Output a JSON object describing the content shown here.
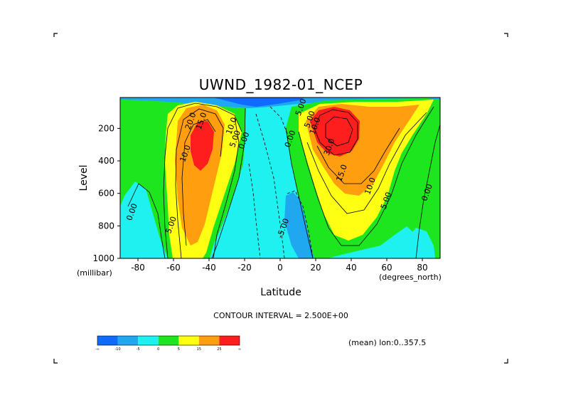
{
  "chart_data": {
    "type": "heatmap",
    "title": "UWND_1982-01_NCEP",
    "xlabel": "Latitude",
    "ylabel": "Level",
    "x_unit": "(degrees_north)",
    "y_unit": "(millibar)",
    "xlim": [
      -90,
      90
    ],
    "ylim": [
      1000,
      10
    ],
    "y_inverted": true,
    "x_ticks": [
      -80,
      -60,
      -40,
      -20,
      0,
      20,
      40,
      60,
      80
    ],
    "y_ticks": [
      200,
      400,
      600,
      800,
      1000
    ],
    "contour_interval_text": "CONTOUR INTERVAL = 2.500E+00",
    "mean_text": "(mean) lon:0..357.5",
    "contour_labels": [
      {
        "text": "0.00",
        "lat": -82,
        "level": 720
      },
      {
        "text": "5.00",
        "lat": -60,
        "level": 800
      },
      {
        "text": "10.0",
        "lat": -52,
        "level": 360
      },
      {
        "text": "20.0",
        "lat": -49,
        "level": 160
      },
      {
        "text": "15.0",
        "lat": -43,
        "level": 160
      },
      {
        "text": "10.0",
        "lat": -26,
        "level": 190
      },
      {
        "text": "5.00",
        "lat": -24,
        "level": 270
      },
      {
        "text": "0.00",
        "lat": -19,
        "level": 280
      },
      {
        "text": "0.00",
        "lat": 7,
        "level": 270
      },
      {
        "text": "5.00",
        "lat": 13,
        "level": 75
      },
      {
        "text": "5.00",
        "lat": 18,
        "level": 150
      },
      {
        "text": "10.0",
        "lat": 21,
        "level": 190
      },
      {
        "text": "30.0",
        "lat": 29,
        "level": 320
      },
      {
        "text": "15.0",
        "lat": 36,
        "level": 480
      },
      {
        "text": "10.0",
        "lat": 52,
        "level": 560
      },
      {
        "text": "5.00",
        "lat": 61,
        "level": 650
      },
      {
        "text": "0.00",
        "lat": 84,
        "level": 600
      },
      {
        "text": "-5.00",
        "lat": 3,
        "level": 820
      }
    ],
    "colorbar": {
      "labels": [
        "-∞",
        "-10",
        "-5",
        "0",
        "5",
        "15",
        "25",
        "∞"
      ],
      "colors": [
        "#0f6aff",
        "#1fa7f0",
        "#1ff0f0",
        "#1ee61e",
        "#ffff14",
        "#ff9f0f",
        "#ff1e1e"
      ]
    }
  },
  "colors": {
    "neg_strong": "#0f6aff",
    "neg": "#1fa7f0",
    "near_zero": "#1ff0f0",
    "low": "#1ee61e",
    "mid": "#ffff14",
    "high": "#ff9f0f",
    "max": "#ff1e1e"
  }
}
